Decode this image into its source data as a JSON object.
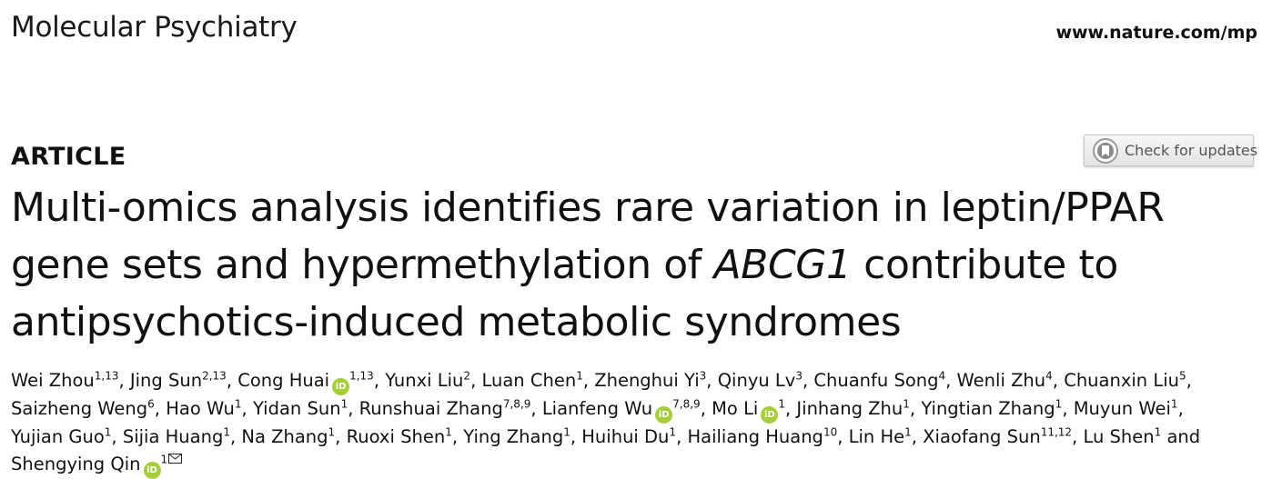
{
  "header": {
    "journal": "Molecular Psychiatry",
    "url": "www.nature.com/mp"
  },
  "article_type": "ARTICLE",
  "check_updates": {
    "label": "Check for updates"
  },
  "title": {
    "line1": "Multi-omics analysis identifies rare variation in leptin/PPAR",
    "line2_pre": "gene sets and hypermethylation of ",
    "line2_em": "ABCG1",
    "line2_post": " contribute to",
    "line3": "antipsychotics-induced metabolic syndromes"
  },
  "authors": [
    {
      "name": "Wei Zhou",
      "aff": "1,13",
      "orcid": false
    },
    {
      "name": "Jing Sun",
      "aff": "2,13",
      "orcid": false
    },
    {
      "name": "Cong Huai",
      "aff": "1,13",
      "orcid": true
    },
    {
      "name": "Yunxi Liu",
      "aff": "2",
      "orcid": false
    },
    {
      "name": "Luan Chen",
      "aff": "1",
      "orcid": false
    },
    {
      "name": "Zhenghui Yi",
      "aff": "3",
      "orcid": false
    },
    {
      "name": "Qinyu Lv",
      "aff": "3",
      "orcid": false
    },
    {
      "name": "Chuanfu Song",
      "aff": "4",
      "orcid": false
    },
    {
      "name": "Wenli Zhu",
      "aff": "4",
      "orcid": false
    },
    {
      "name": "Chuanxin Liu",
      "aff": "5",
      "orcid": false
    },
    {
      "name": "Saizheng Weng",
      "aff": "6",
      "orcid": false
    },
    {
      "name": "Hao Wu",
      "aff": "1",
      "orcid": false
    },
    {
      "name": "Yidan Sun",
      "aff": "1",
      "orcid": false
    },
    {
      "name": "Runshuai Zhang",
      "aff": "7,8,9",
      "orcid": false
    },
    {
      "name": "Lianfeng Wu",
      "aff": "7,8,9",
      "orcid": true
    },
    {
      "name": "Mo Li",
      "aff": "1",
      "orcid": true
    },
    {
      "name": "Jinhang Zhu",
      "aff": "1",
      "orcid": false
    },
    {
      "name": "Yingtian Zhang",
      "aff": "1",
      "orcid": false
    },
    {
      "name": "Muyun Wei",
      "aff": "1",
      "orcid": false
    },
    {
      "name": "Yujian Guo",
      "aff": "1",
      "orcid": false
    },
    {
      "name": "Sijia Huang",
      "aff": "1",
      "orcid": false
    },
    {
      "name": "Na Zhang",
      "aff": "1",
      "orcid": false
    },
    {
      "name": "Ruoxi Shen",
      "aff": "1",
      "orcid": false
    },
    {
      "name": "Ying Zhang",
      "aff": "1",
      "orcid": false
    },
    {
      "name": "Huihui Du",
      "aff": "1",
      "orcid": false
    },
    {
      "name": "Hailiang Huang",
      "aff": "10",
      "orcid": false
    },
    {
      "name": "Lin He",
      "aff": "1",
      "orcid": false
    },
    {
      "name": "Xiaofang Sun",
      "aff": "11,12",
      "orcid": false
    },
    {
      "name": "Lu Shen",
      "aff": "1",
      "orcid": false
    },
    {
      "name": "Shengying Qin",
      "aff": "1",
      "orcid": true,
      "corresponding": true
    }
  ],
  "connector": "and",
  "orcid_badge": "iD",
  "colors": {
    "orcid": "#a6ce39"
  }
}
